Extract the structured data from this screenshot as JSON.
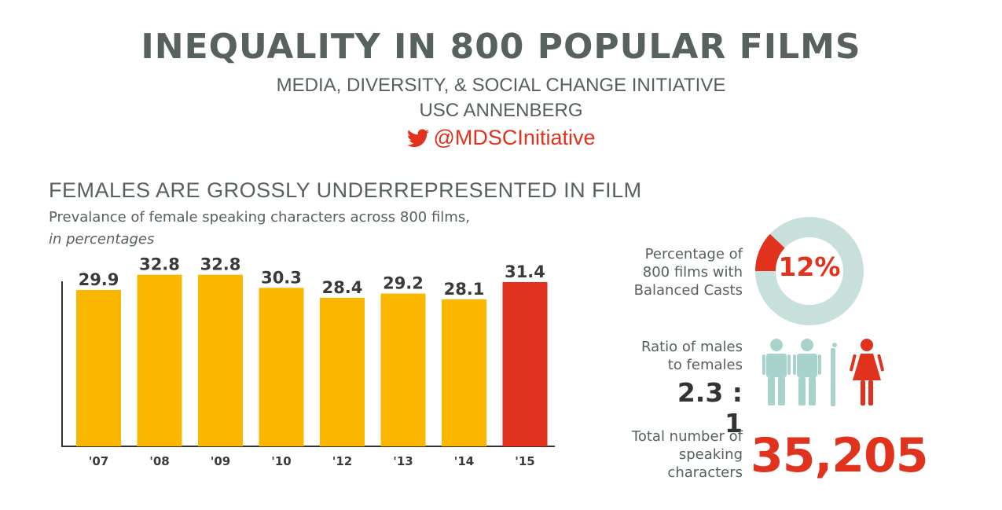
{
  "header": {
    "title": "INEQUALITY IN 800 POPULAR FILMS",
    "subtitle_1": "MEDIA, DIVERSITY, & SOCIAL CHANGE INITIATIVE",
    "subtitle_2": "USC ANNENBERG",
    "twitter_handle": "@MDSCInitiative",
    "twitter_icon": "twitter-bird-icon"
  },
  "section": {
    "title": "FEMALES ARE GROSSLY UNDERREPRESENTED IN FILM"
  },
  "chart_data": {
    "type": "bar",
    "title": "Prevalance of female speaking characters across 800 films,",
    "unit_note": "in percentages",
    "categories": [
      "'07",
      "'08",
      "'09",
      "'10",
      "'12",
      "'13",
      "'14",
      "'15"
    ],
    "values": [
      29.9,
      32.8,
      32.8,
      30.3,
      28.4,
      29.2,
      28.1,
      31.4
    ],
    "value_labels": [
      "29.9",
      "32.8",
      "32.8",
      "30.3",
      "28.4",
      "29.2",
      "28.1",
      "31.4"
    ],
    "highlight_index": 7,
    "xlabel": "",
    "ylabel": "",
    "ylim": [
      0,
      35
    ],
    "grid": false
  },
  "stats": {
    "balanced": {
      "label_lines": [
        "Percentage of",
        "800 films with",
        "Balanced Casts"
      ],
      "value": "12%",
      "fraction": 0.12
    },
    "ratio": {
      "label_lines": [
        "Ratio of males",
        "to females"
      ],
      "value": "2.3 : 1",
      "male_icon": "male-figure-icon",
      "female_icon": "female-figure-icon"
    },
    "total": {
      "label_lines": [
        "Total number of",
        "speaking",
        "characters"
      ],
      "value": "35,205"
    }
  },
  "colors": {
    "bar": "#fbb700",
    "highlight": "#e0321c",
    "donut_ring": "#c8e0dc",
    "figure_male": "#a8d2cc",
    "figure_female": "#e0321c",
    "title_text": "#566160"
  }
}
